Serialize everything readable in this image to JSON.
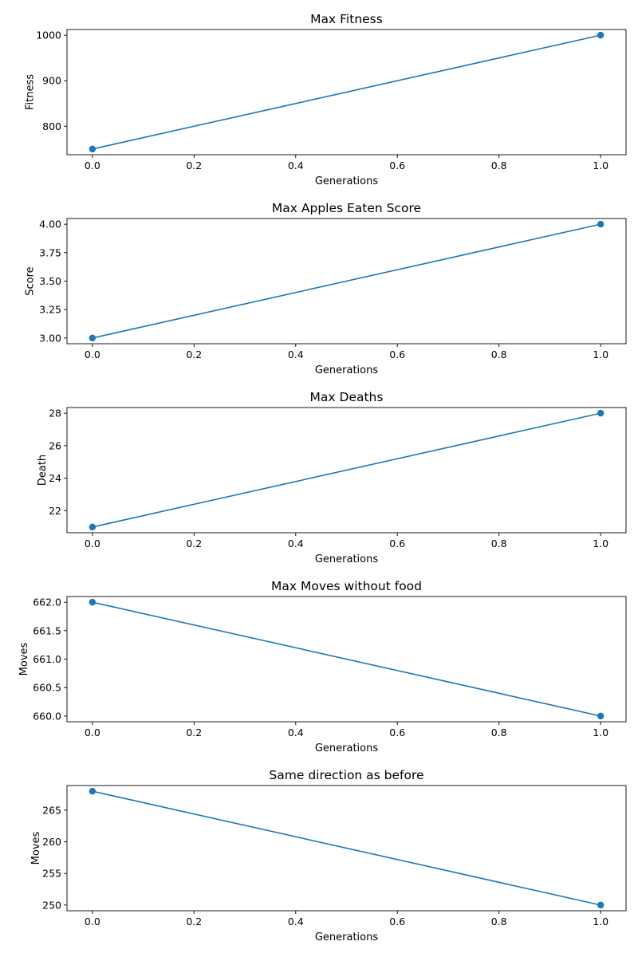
{
  "chart_data": [
    {
      "type": "line",
      "title": "Max Fitness",
      "xlabel": "Generations",
      "ylabel": "Fitness",
      "x": [
        0,
        1
      ],
      "series": [
        {
          "values": [
            750,
            1000
          ]
        }
      ],
      "xlim": [
        -0.05,
        1.05
      ],
      "ylim": [
        737.5,
        1012.5
      ],
      "xticks": [
        "0.0",
        "0.2",
        "0.4",
        "0.6",
        "0.8",
        "1.0"
      ],
      "yticks": [
        "800",
        "900",
        "1000"
      ],
      "grid": false,
      "marker": "circle",
      "color": "#1f77b4"
    },
    {
      "type": "line",
      "title": "Max Apples Eaten Score",
      "xlabel": "Generations",
      "ylabel": "Score",
      "x": [
        0,
        1
      ],
      "series": [
        {
          "values": [
            3,
            4
          ]
        }
      ],
      "xlim": [
        -0.05,
        1.05
      ],
      "ylim": [
        2.95,
        4.05
      ],
      "xticks": [
        "0.0",
        "0.2",
        "0.4",
        "0.6",
        "0.8",
        "1.0"
      ],
      "yticks": [
        "3.00",
        "3.25",
        "3.50",
        "3.75",
        "4.00"
      ],
      "grid": false,
      "marker": "circle",
      "color": "#1f77b4"
    },
    {
      "type": "line",
      "title": "Max Deaths",
      "xlabel": "Generations",
      "ylabel": "Death",
      "x": [
        0,
        1
      ],
      "series": [
        {
          "values": [
            21,
            28
          ]
        }
      ],
      "xlim": [
        -0.05,
        1.05
      ],
      "ylim": [
        20.65,
        28.35
      ],
      "xticks": [
        "0.0",
        "0.2",
        "0.4",
        "0.6",
        "0.8",
        "1.0"
      ],
      "yticks": [
        "22",
        "24",
        "26",
        "28"
      ],
      "grid": false,
      "marker": "circle",
      "color": "#1f77b4"
    },
    {
      "type": "line",
      "title": "Max Moves without food",
      "xlabel": "Generations",
      "ylabel": "Moves",
      "x": [
        0,
        1
      ],
      "series": [
        {
          "values": [
            662,
            660
          ]
        }
      ],
      "xlim": [
        -0.05,
        1.05
      ],
      "ylim": [
        659.9,
        662.1
      ],
      "xticks": [
        "0.0",
        "0.2",
        "0.4",
        "0.6",
        "0.8",
        "1.0"
      ],
      "yticks": [
        "660.0",
        "660.5",
        "661.0",
        "661.5",
        "662.0"
      ],
      "grid": false,
      "marker": "circle",
      "color": "#1f77b4"
    },
    {
      "type": "line",
      "title": "Same direction as before",
      "xlabel": "Generations",
      "ylabel": "Moves",
      "x": [
        0,
        1
      ],
      "series": [
        {
          "values": [
            268,
            250
          ]
        }
      ],
      "xlim": [
        -0.05,
        1.05
      ],
      "ylim": [
        249.1,
        268.9
      ],
      "xticks": [
        "0.0",
        "0.2",
        "0.4",
        "0.6",
        "0.8",
        "1.0"
      ],
      "yticks": [
        "250",
        "255",
        "260",
        "265"
      ],
      "grid": false,
      "marker": "circle",
      "color": "#1f77b4"
    }
  ]
}
